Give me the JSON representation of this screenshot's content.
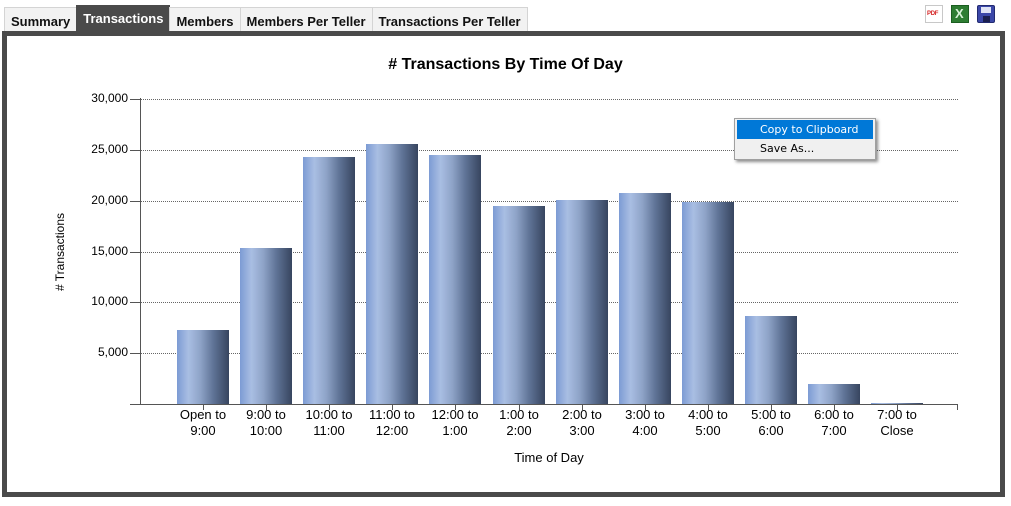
{
  "tabs": [
    {
      "label": "Summary",
      "active": false
    },
    {
      "label": "Transactions",
      "active": true
    },
    {
      "label": "Members",
      "active": false
    },
    {
      "label": "Members Per Teller",
      "active": false
    },
    {
      "label": "Transactions Per Teller",
      "active": false
    }
  ],
  "toolbar": {
    "pdf_label": "PDF",
    "excel_label": "X",
    "icons": [
      "pdf-export-icon",
      "excel-export-icon",
      "save-icon"
    ]
  },
  "context_menu": {
    "items": [
      {
        "label": "Copy to Clipboard",
        "highlighted": true
      },
      {
        "label": "Save As...",
        "highlighted": false
      }
    ]
  },
  "colors": {
    "frame": "#4a4a4a",
    "bar_light": "#a9bee3",
    "bar_dark": "#37455f",
    "menu_highlight": "#0078d7"
  },
  "chart_data": {
    "type": "bar",
    "title": "# Transactions By Time Of Day",
    "xlabel": "Time of Day",
    "ylabel": "# Transactions",
    "ylim": [
      0,
      30000
    ],
    "yticks": [
      "30,000",
      "25,000",
      "20,000",
      "15,000",
      "10,000",
      "5,000"
    ],
    "grid": true,
    "legend": null,
    "categories": [
      [
        "Open to",
        "9:00"
      ],
      [
        "9:00 to",
        "10:00"
      ],
      [
        "10:00 to",
        "11:00"
      ],
      [
        "11:00 to",
        "12:00"
      ],
      [
        "12:00 to",
        "1:00"
      ],
      [
        "1:00 to",
        "2:00"
      ],
      [
        "2:00 to",
        "3:00"
      ],
      [
        "3:00 to",
        "4:00"
      ],
      [
        "4:00 to",
        "5:00"
      ],
      [
        "5:00 to",
        "6:00"
      ],
      [
        "6:00 to",
        "7:00"
      ],
      [
        "7:00 to",
        "Close"
      ]
    ],
    "values": [
      7250,
      15300,
      24300,
      25600,
      24500,
      19500,
      20100,
      20800,
      19900,
      8700,
      2000,
      100
    ]
  }
}
